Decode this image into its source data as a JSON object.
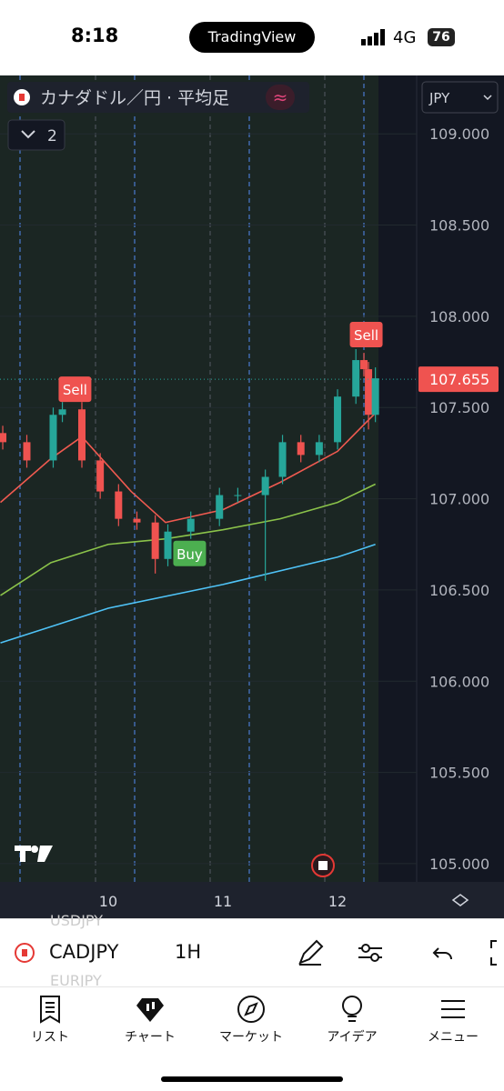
{
  "status_bar": {
    "time": "8:18",
    "app": "TradingView",
    "network": "4G",
    "battery": "76"
  },
  "chart_data": {
    "type": "candlestick",
    "title": "カナダドル／円 · 平均足",
    "indicator_count": "2",
    "currency": "JPY",
    "up_color": "#26a69a",
    "down_color": "#ef5350",
    "x": [
      9.08,
      9.29,
      9.52,
      9.6,
      9.77,
      9.93,
      10.09,
      10.25,
      10.41,
      10.52,
      10.72,
      10.97,
      11.13,
      11.37,
      11.52,
      11.68,
      11.84,
      12.0,
      12.16,
      12.23,
      12.27,
      12.33
    ],
    "open": [
      107.36,
      107.31,
      107.21,
      107.46,
      107.49,
      107.21,
      107.04,
      106.89,
      106.87,
      106.67,
      106.82,
      106.89,
      107.02,
      107.02,
      107.12,
      107.31,
      107.24,
      107.31,
      107.56,
      107.76,
      107.71,
      107.46
    ],
    "high": [
      107.4,
      107.35,
      107.5,
      107.53,
      107.53,
      107.25,
      107.08,
      106.93,
      106.91,
      106.86,
      106.93,
      107.06,
      107.06,
      107.16,
      107.35,
      107.35,
      107.35,
      107.6,
      107.82,
      107.8,
      107.75,
      107.72
    ],
    "low": [
      107.27,
      107.17,
      107.17,
      107.42,
      107.17,
      107.0,
      106.85,
      106.83,
      106.59,
      106.63,
      106.78,
      106.85,
      106.98,
      106.55,
      107.08,
      107.2,
      107.2,
      107.27,
      107.52,
      107.67,
      107.38,
      107.42
    ],
    "close": [
      107.31,
      107.21,
      107.46,
      107.49,
      107.21,
      107.04,
      106.89,
      106.87,
      106.67,
      106.82,
      106.89,
      107.02,
      107.02,
      107.12,
      107.31,
      107.24,
      107.31,
      107.56,
      107.76,
      107.71,
      107.46,
      107.66
    ],
    "series": [
      {
        "color": "#f05a50",
        "x": [
          9.06,
          9.5,
          9.77,
          10.2,
          10.5,
          11.0,
          11.5,
          12.0,
          12.33
        ],
        "values": [
          106.98,
          107.22,
          107.34,
          107.04,
          106.87,
          106.94,
          107.09,
          107.26,
          107.47
        ]
      },
      {
        "color": "#8bc34a",
        "x": [
          9.06,
          9.5,
          10.0,
          10.5,
          11.0,
          11.5,
          12.0,
          12.33
        ],
        "values": [
          106.47,
          106.65,
          106.75,
          106.78,
          106.83,
          106.89,
          106.98,
          107.08
        ]
      },
      {
        "color": "#4fc3f7",
        "x": [
          9.06,
          10.0,
          11.0,
          12.0,
          12.33
        ],
        "values": [
          106.21,
          106.4,
          106.53,
          106.68,
          106.75
        ]
      }
    ],
    "annotations": [
      {
        "label": "Sell",
        "x": 9.71,
        "y": 107.6,
        "color": "#ef5350"
      },
      {
        "label": "Sell",
        "x": 12.25,
        "y": 107.9,
        "color": "#ef5350"
      },
      {
        "label": "Buy",
        "x": 10.71,
        "y": 106.7,
        "color": "#4caf50"
      }
    ],
    "last_price": {
      "value": 107.655,
      "label": "107.655"
    },
    "xlim": [
      9.056,
      12.69
    ],
    "xticks": [
      10,
      11,
      12
    ],
    "ylim": [
      104.9,
      109.32
    ],
    "yticks": [
      {
        "value": 105,
        "label": "105.000"
      },
      {
        "value": 105.5,
        "label": "105.500"
      },
      {
        "value": 106,
        "label": "106.000"
      },
      {
        "value": 106.5,
        "label": "106.500"
      },
      {
        "value": 107,
        "label": "107.000"
      },
      {
        "value": 107.5,
        "label": "107.500"
      },
      {
        "value": 108,
        "label": "108.000"
      },
      {
        "value": 108.5,
        "label": "108.500"
      },
      {
        "value": 109,
        "label": "109.000"
      }
    ],
    "grid": true
  },
  "toolbar": {
    "symbol": "CADJPY",
    "interval": "1H",
    "ghost_above": "USDJPY",
    "ghost_below": "EURJPY"
  },
  "nav": [
    "リスト",
    "チャート",
    "マーケット",
    "アイデア",
    "メニュー"
  ]
}
